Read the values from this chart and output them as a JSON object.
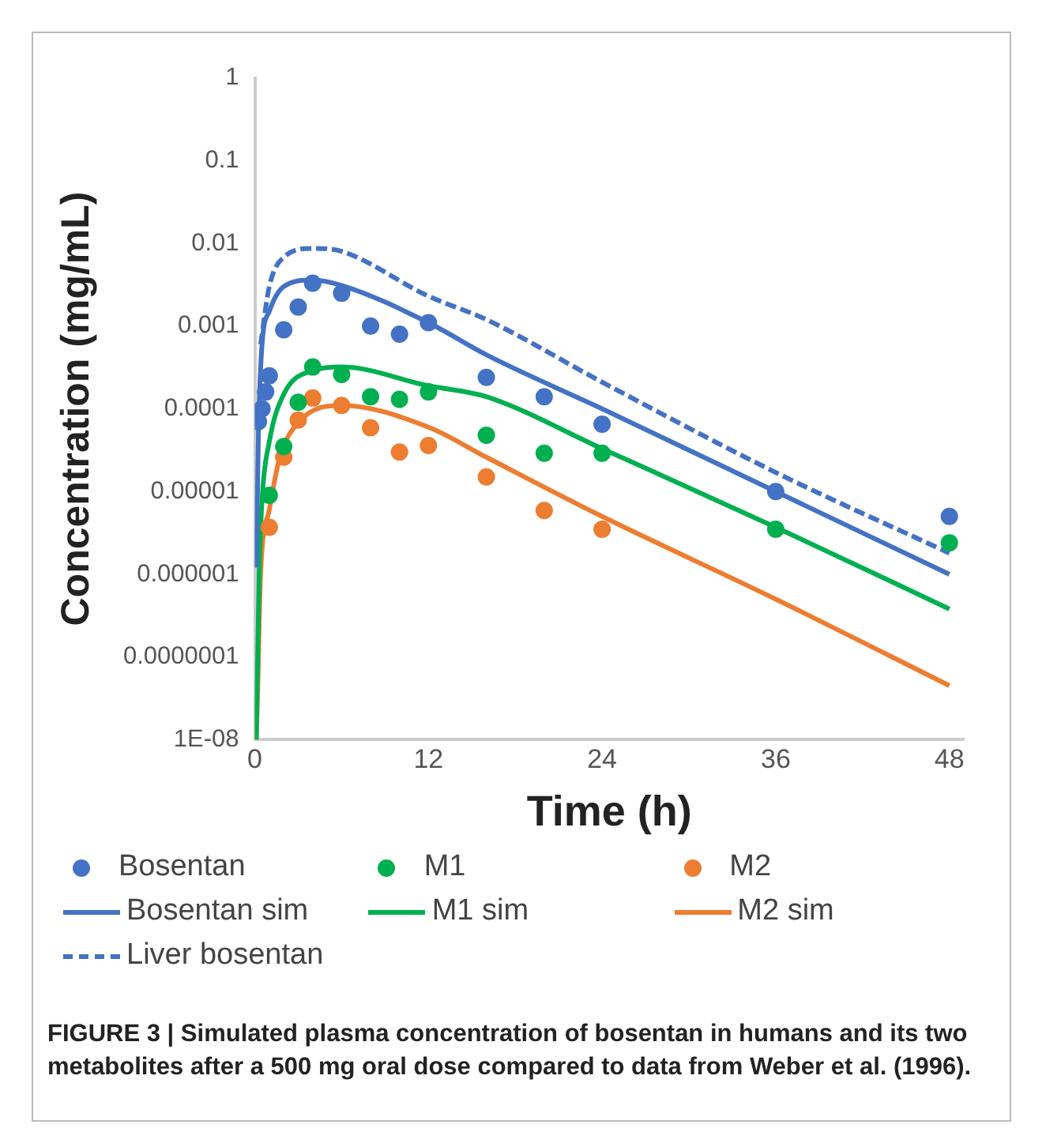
{
  "chart_data": {
    "type": "scatter",
    "xlabel": "Time (h)",
    "ylabel": "Concentration (mg/mL)",
    "xlim": [
      0,
      49
    ],
    "xticks": [
      0,
      12,
      24,
      36,
      48
    ],
    "ylim": [
      1e-08,
      1
    ],
    "log": "y",
    "yticks": [
      {
        "value": 1,
        "label": "1"
      },
      {
        "value": 0.1,
        "label": "0.1"
      },
      {
        "value": 0.01,
        "label": "0.01"
      },
      {
        "value": 0.001,
        "label": "0.001"
      },
      {
        "value": 0.0001,
        "label": "0.0001"
      },
      {
        "value": 1e-05,
        "label": "0.00001"
      },
      {
        "value": 1e-06,
        "label": "0.000001"
      },
      {
        "value": 1e-07,
        "label": "0.0000001"
      },
      {
        "value": 1e-08,
        "label": "1E-08"
      }
    ],
    "grid": false,
    "legend": "bottom",
    "series": [
      {
        "name": "Bosentan",
        "type": "scatter",
        "marker": "circle",
        "color": "#4472c4",
        "x": [
          0.25,
          0.5,
          0.75,
          1,
          2,
          3,
          4,
          6,
          8,
          10,
          12,
          16,
          20,
          24,
          36,
          48
        ],
        "values": [
          7e-05,
          0.0001,
          0.00016,
          0.00025,
          0.0009,
          0.0017,
          0.0033,
          0.0025,
          0.001,
          0.0008,
          0.0011,
          0.00024,
          0.00014,
          6.5e-05,
          1e-05,
          5e-06
        ]
      },
      {
        "name": "M1",
        "type": "scatter",
        "marker": "circle",
        "color": "#00b050",
        "x": [
          1,
          2,
          3,
          4,
          6,
          8,
          10,
          12,
          16,
          20,
          24,
          36,
          48
        ],
        "values": [
          9e-06,
          3.5e-05,
          0.00012,
          0.00032,
          0.00026,
          0.00014,
          0.00013,
          0.00016,
          4.8e-05,
          2.9e-05,
          2.9e-05,
          3.5e-06,
          2.4e-06
        ]
      },
      {
        "name": "M2",
        "type": "scatter",
        "marker": "circle",
        "color": "#ed7d31",
        "x": [
          1,
          2,
          3,
          4,
          6,
          8,
          10,
          12,
          16,
          20,
          24
        ],
        "values": [
          3.7e-06,
          2.6e-05,
          7.3e-05,
          0.000135,
          0.00011,
          5.9e-05,
          3e-05,
          3.6e-05,
          1.5e-05,
          5.9e-06,
          3.5e-06
        ]
      },
      {
        "name": "Bosentan sim",
        "type": "line",
        "marker": "none",
        "line_style": "solid",
        "color": "#4472c4",
        "x": [
          0.1,
          0.25,
          0.5,
          1,
          2,
          4,
          6,
          12,
          16,
          24,
          36,
          48
        ],
        "values": [
          1.2e-06,
          5e-05,
          0.0006,
          0.0015,
          0.003,
          0.0036,
          0.0031,
          0.0011,
          0.00045,
          0.0001,
          1e-05,
          1e-06
        ]
      },
      {
        "name": "M1 sim",
        "type": "line",
        "marker": "none",
        "line_style": "solid",
        "color": "#00b050",
        "x": [
          0.1,
          0.3,
          0.5,
          1,
          2,
          4,
          6,
          12,
          16,
          24,
          36,
          48
        ],
        "values": [
          1e-08,
          1e-06,
          8e-06,
          4e-05,
          0.00015,
          0.00029,
          0.00032,
          0.00019,
          0.00014,
          3.3e-05,
          3.7e-06,
          3.8e-07
        ]
      },
      {
        "name": "M2 sim",
        "type": "line",
        "marker": "none",
        "line_style": "solid",
        "color": "#ed7d31",
        "x": [
          0.1,
          0.2,
          0.4,
          1,
          1.7,
          3,
          6,
          12,
          16,
          24,
          36,
          48
        ],
        "values": [
          1e-08,
          4e-08,
          1e-06,
          6e-06,
          2.5e-05,
          6.8e-05,
          0.00011,
          6e-05,
          2.6e-05,
          5e-06,
          5e-07,
          4.5e-08
        ]
      },
      {
        "name": "Liver bosentan",
        "type": "line",
        "marker": "none",
        "line_style": "dashed",
        "color": "#4472c4",
        "x": [
          0.4,
          1,
          2,
          4,
          6,
          12,
          16,
          24,
          36,
          48
        ],
        "values": [
          0.0006,
          0.003,
          0.0068,
          0.0087,
          0.008,
          0.0023,
          0.0012,
          0.00021,
          1.7e-05,
          1.8e-06
        ]
      }
    ],
    "annotations": [
      "FIGURE 3 | Simulated plasma concentration of bosentan in humans and its two metabolites after a 500 mg oral dose compared to data from Weber et al. (1996)."
    ]
  }
}
